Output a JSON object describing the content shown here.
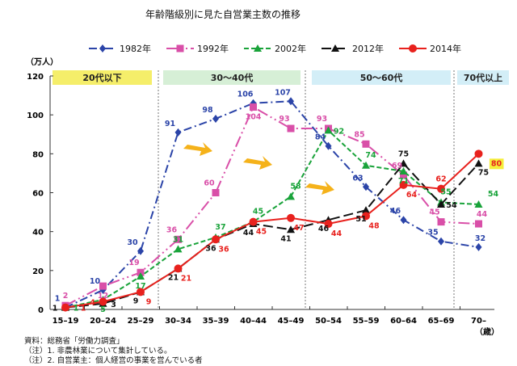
{
  "chart_data": {
    "type": "line",
    "title": "年齢階級別に見た自営業主数の推移",
    "ylabel": "（万人）",
    "xlabel": "（歳）",
    "ylim": [
      0,
      120
    ],
    "yticks": [
      0,
      20,
      40,
      60,
      80,
      100,
      120
    ],
    "grid": false,
    "legend": "top",
    "categories": [
      "15–19",
      "20–24",
      "25–29",
      "30–34",
      "35–39",
      "40–44",
      "45–49",
      "50–54",
      "55–59",
      "60–64",
      "65–69",
      "70–"
    ],
    "bands": [
      {
        "label": "20代以下",
        "color": "#f5ee6a"
      },
      {
        "label": "30〜40代",
        "color": "#d6efd6"
      },
      {
        "label": "50〜60代",
        "color": "#d3eef7"
      },
      {
        "label": "70代以上",
        "color": "#d3eef7"
      }
    ],
    "series": [
      {
        "name": "1982年",
        "color": "#2b44a8",
        "marker": "diamond",
        "dash": "10,4,2,4",
        "values": [
          1,
          10,
          30,
          91,
          98,
          106,
          107,
          84,
          63,
          46,
          35,
          32
        ]
      },
      {
        "name": "1992年",
        "color": "#d94fa8",
        "marker": "square",
        "dash": "14,4,2,4,2,4",
        "values": [
          2,
          12,
          19,
          36,
          60,
          104,
          93,
          93,
          85,
          69,
          45,
          44
        ]
      },
      {
        "name": "2002年",
        "color": "#19a33a",
        "marker": "triangle",
        "dash": "6,3",
        "values": [
          1,
          5,
          17,
          31,
          37,
          45,
          58,
          92,
          74,
          71,
          55,
          54
        ]
      },
      {
        "name": "2012年",
        "color": "#111111",
        "marker": "triangle",
        "dash": "12,5",
        "values": [
          1,
          3,
          9,
          21,
          36,
          44,
          41,
          46,
          51,
          75,
          54,
          75
        ]
      },
      {
        "name": "2014年",
        "color": "#e8211d",
        "marker": "circle",
        "dash": "",
        "values": [
          1,
          4,
          9,
          21,
          36,
          45,
          47,
          44,
          48,
          64,
          62,
          80
        ]
      }
    ]
  },
  "notes": [
    "資料：総務省「労働力調査」",
    "（注）1. 非農林業について集計している。",
    "（注）2. 自営業主：個人経営の事業を営んでいる者"
  ]
}
